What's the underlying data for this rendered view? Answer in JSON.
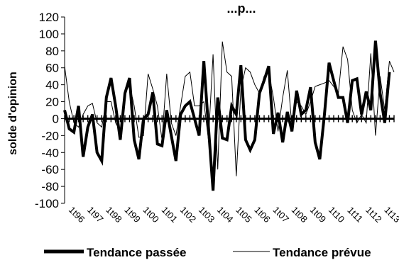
{
  "chart_data": {
    "type": "line",
    "title": "...p...",
    "xlabel": "",
    "ylabel": "solde d'opinion",
    "ylim": [
      -100,
      120
    ],
    "yticks": [
      -100,
      -80,
      -60,
      -40,
      -20,
      0,
      20,
      40,
      60,
      80,
      100,
      120
    ],
    "grid": false,
    "legend_position": "bottom",
    "x_tick_labels": [
      "1t96",
      "1t97",
      "1t98",
      "1t99",
      "1t00",
      "1t01",
      "1t02",
      "1t03",
      "1t04",
      "1t05",
      "1t06",
      "1t07",
      "1t08",
      "1t09",
      "1t10",
      "1t11",
      "1t12",
      "1t13"
    ],
    "x_points_per_label": 4,
    "colors": {
      "line": "#000000",
      "background": "#ffffff"
    },
    "series": [
      {
        "name": "Tendance passée",
        "values": [
          10,
          -12,
          -16,
          15,
          -45,
          -10,
          5,
          -40,
          -50,
          25,
          48,
          15,
          -25,
          30,
          48,
          -25,
          -48,
          0,
          5,
          31,
          -30,
          -32,
          10,
          -20,
          -50,
          5,
          15,
          20,
          0,
          -20,
          68,
          -10,
          -85,
          25,
          -23,
          -25,
          15,
          5,
          63,
          -25,
          -37,
          -25,
          30,
          45,
          62,
          -18,
          7,
          -28,
          8,
          -15,
          33,
          5,
          10,
          37,
          -28,
          -48,
          5,
          66,
          45,
          25,
          25,
          -5,
          45,
          47,
          5,
          32,
          10,
          92,
          30,
          -5,
          55
        ],
        "style": "thick"
      },
      {
        "name": "Tendance prévue",
        "values": [
          62,
          20,
          -5,
          -10,
          5,
          15,
          18,
          -5,
          -10,
          20,
          20,
          -5,
          -15,
          30,
          40,
          15,
          -22,
          -20,
          53,
          35,
          15,
          -25,
          53,
          -5,
          -20,
          15,
          50,
          55,
          15,
          15,
          20,
          -25,
          76,
          -60,
          91,
          55,
          50,
          -68,
          35,
          60,
          55,
          40,
          30,
          50,
          55,
          25,
          -15,
          25,
          57,
          -10,
          20,
          15,
          5,
          20,
          38,
          40,
          42,
          45,
          38,
          30,
          85,
          70,
          10,
          -5,
          5,
          -5,
          77,
          -20,
          50,
          10,
          68,
          55
        ],
        "style": "thin"
      }
    ]
  }
}
